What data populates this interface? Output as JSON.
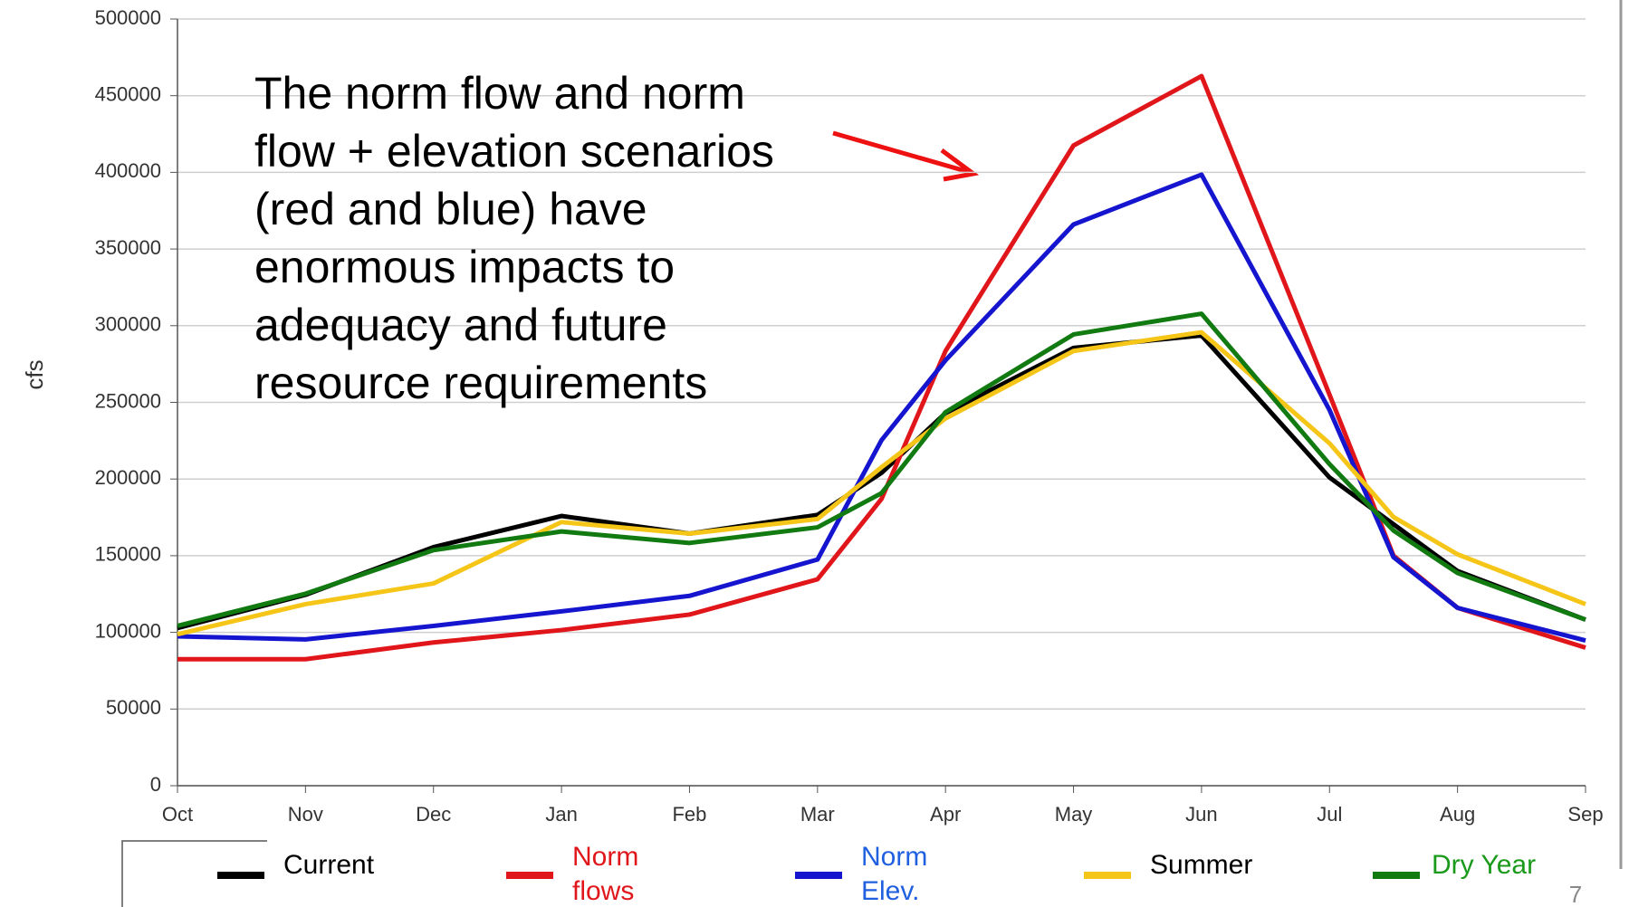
{
  "chart_data": {
    "type": "line",
    "y_label": "cfs",
    "annotation": [
      "The norm flow and norm",
      "flow + elevation scenarios",
      "(red and blue) have",
      "enormous impacts to",
      "adequacy and future",
      "resource requirements"
    ],
    "page_number": "7",
    "x": [
      0,
      1,
      2,
      3,
      4,
      5,
      5.5,
      6,
      7,
      8,
      9,
      9.5,
      10,
      11
    ],
    "xlim": [
      0,
      11
    ],
    "xticks": [
      {
        "value": 0,
        "label": "Oct"
      },
      {
        "value": 1,
        "label": "Nov"
      },
      {
        "value": 2,
        "label": "Dec"
      },
      {
        "value": 3,
        "label": "Jan"
      },
      {
        "value": 4,
        "label": "Feb"
      },
      {
        "value": 5,
        "label": "Mar"
      },
      {
        "value": 6,
        "label": "Apr"
      },
      {
        "value": 7,
        "label": "May"
      },
      {
        "value": 8,
        "label": "Jun"
      },
      {
        "value": 9,
        "label": "Jul"
      },
      {
        "value": 10,
        "label": "Aug"
      },
      {
        "value": 11,
        "label": "Sep"
      }
    ],
    "ylim": [
      0,
      500000
    ],
    "yticks": [
      0,
      50000,
      100000,
      150000,
      200000,
      250000,
      300000,
      350000,
      400000,
      450000,
      500000
    ],
    "grid": true,
    "series": [
      {
        "name": "Current",
        "color": "#000000",
        "legend_text_color": "#000000",
        "values": [
          102800,
          124500,
          155600,
          175900,
          164400,
          176600,
          204000,
          243000,
          285500,
          293600,
          201000,
          170500,
          140000,
          108300
        ]
      },
      {
        "name": "Norm flows",
        "color": "#e0161b",
        "legend_text_color": "#e0161b",
        "values": [
          82500,
          82500,
          93400,
          101500,
          111600,
          134600,
          187000,
          283500,
          417500,
          462800,
          255000,
          150000,
          116000,
          90000
        ]
      },
      {
        "name": "Norm Elev.",
        "color": "#1515d0",
        "legend_text_color": "#1f5fe0",
        "values": [
          97400,
          95400,
          104200,
          113700,
          123800,
          147500,
          225300,
          277400,
          366000,
          398500,
          245000,
          149000,
          116000,
          94700
        ]
      },
      {
        "name": "Summer",
        "color": "#f5c518",
        "legend_text_color": "#000000",
        "values": [
          98800,
          118400,
          131900,
          171900,
          164400,
          173900,
          207700,
          239500,
          283500,
          295700,
          223300,
          175200,
          150900,
          118400
        ]
      },
      {
        "name": "Dry Year",
        "color": "#117a11",
        "legend_text_color": "#1a9a1a",
        "values": [
          104200,
          125200,
          153600,
          165800,
          158300,
          168500,
          190800,
          243600,
          294300,
          307800,
          209700,
          166400,
          138700,
          108300
        ]
      }
    ]
  }
}
